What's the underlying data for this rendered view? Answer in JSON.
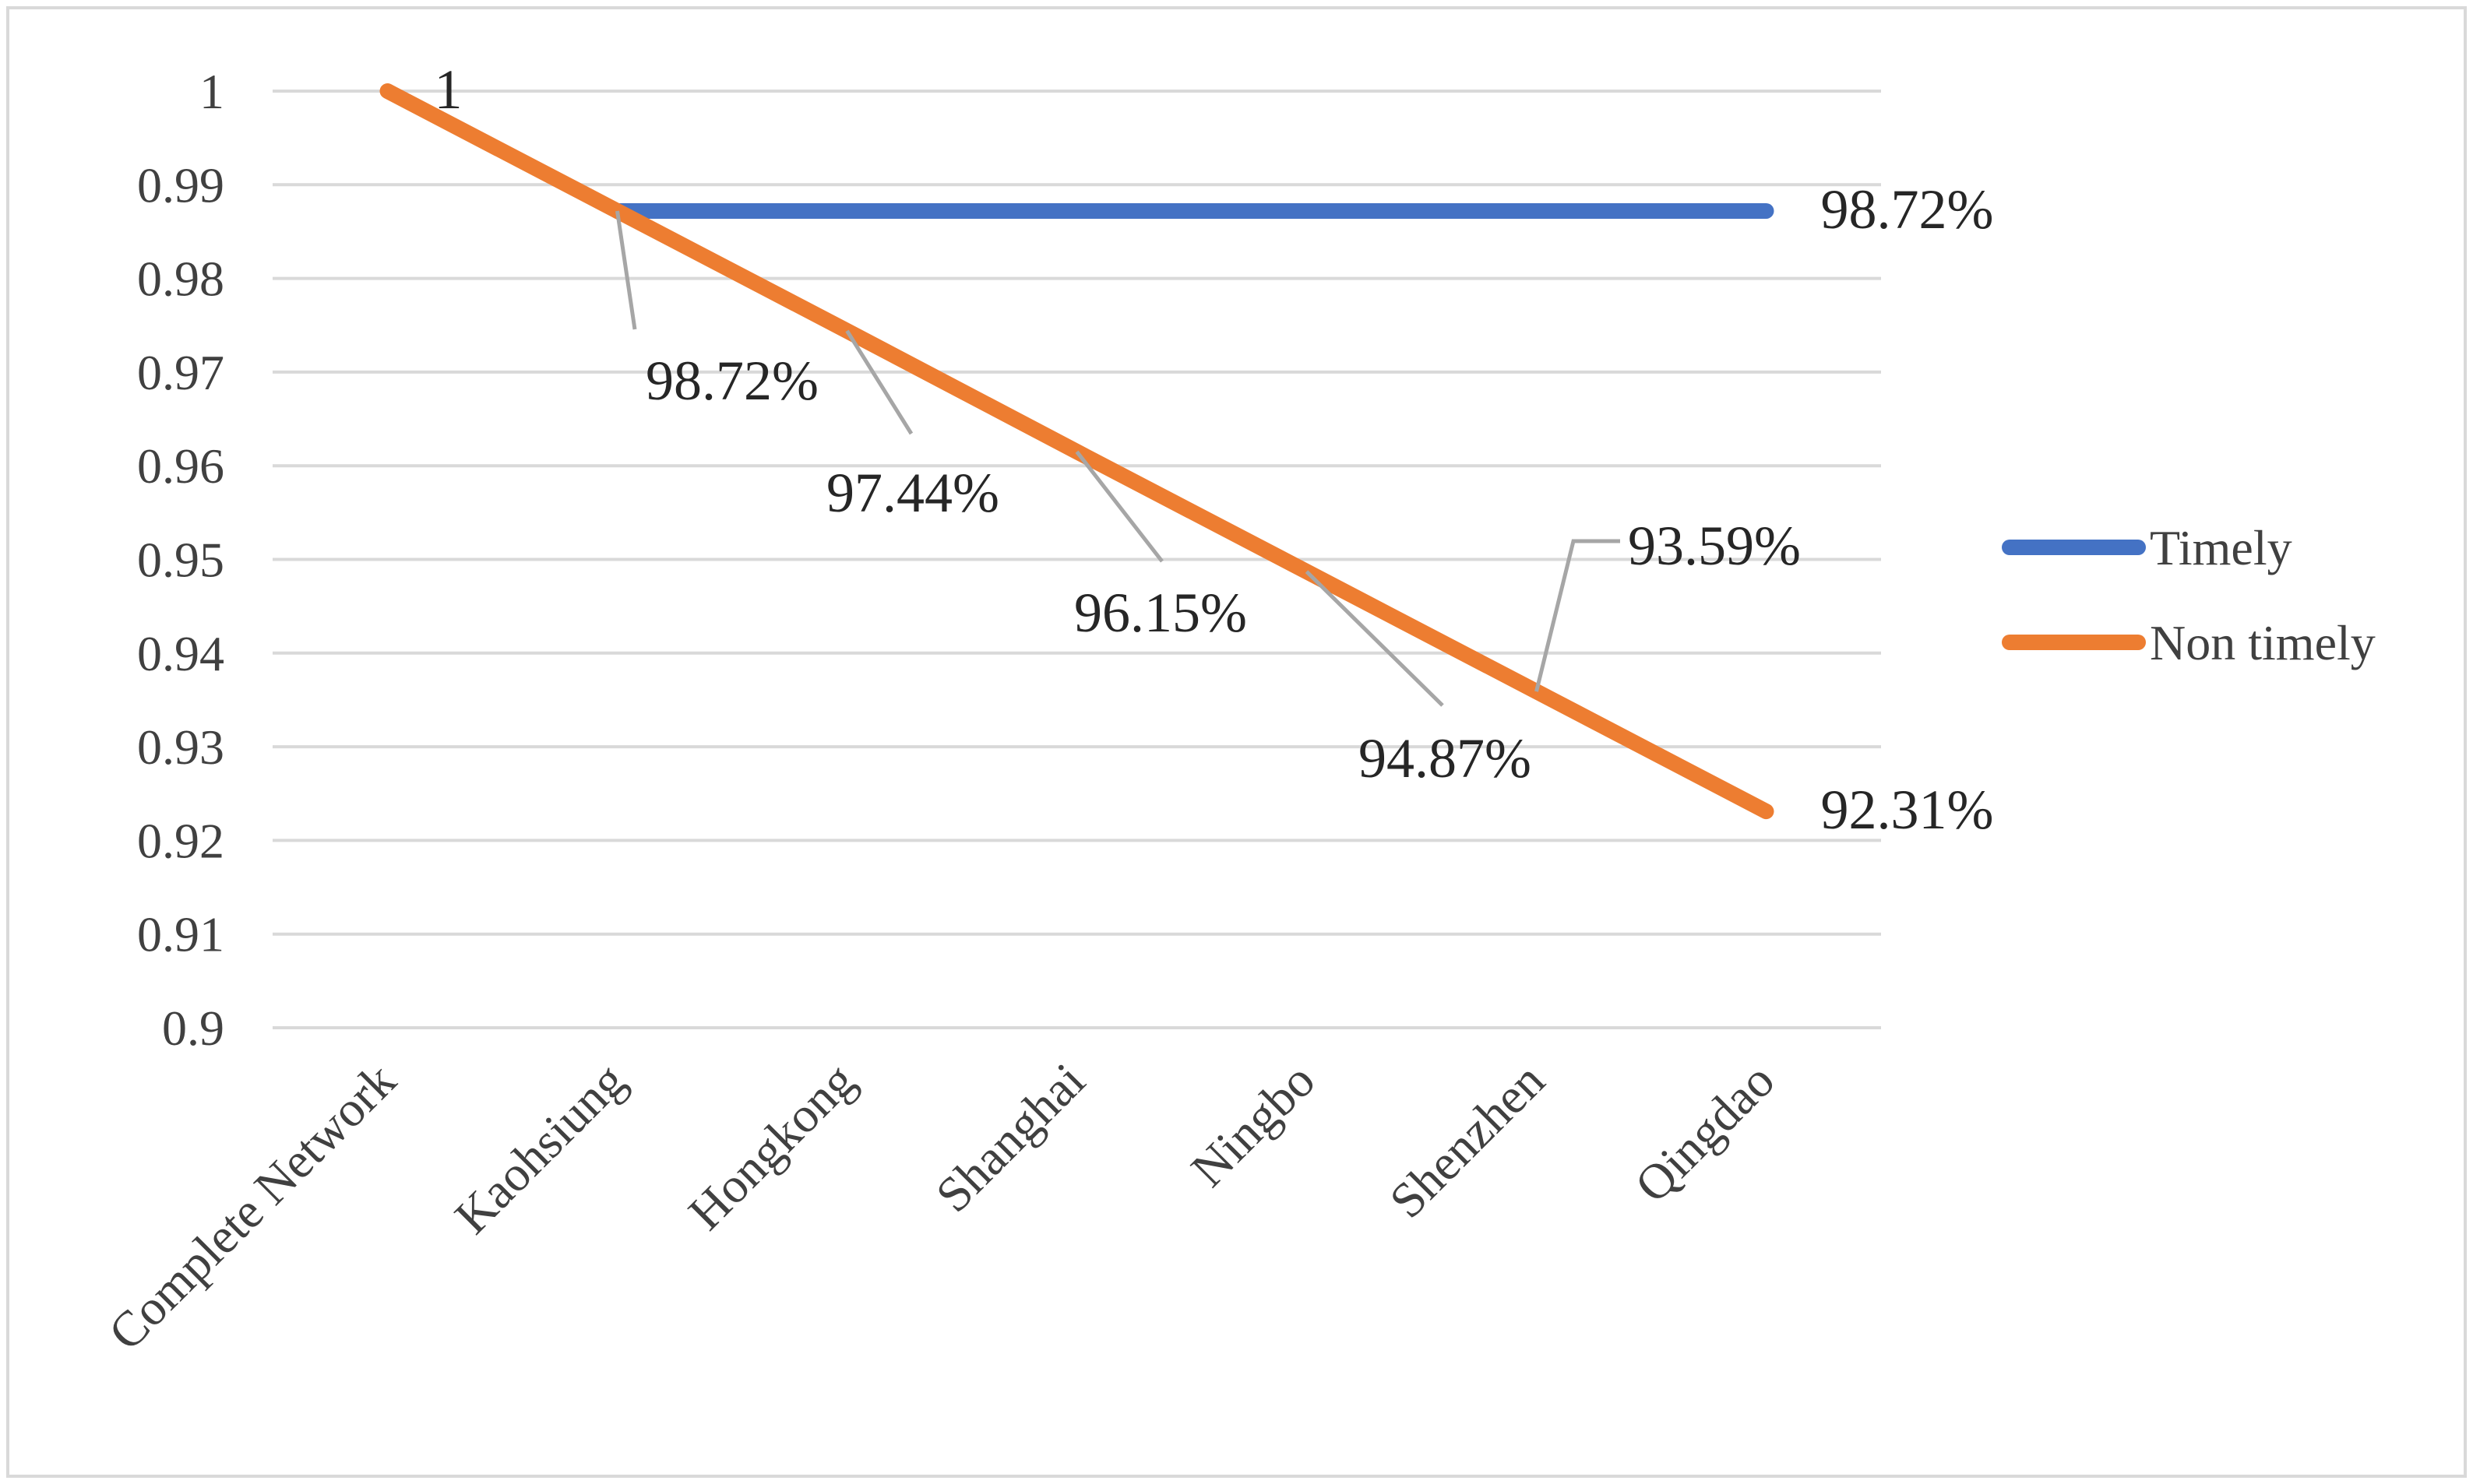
{
  "chart_data": {
    "type": "line",
    "title": "",
    "xlabel": "",
    "ylabel": "",
    "categories": [
      "Complete Network",
      "Kaohsiung",
      "Hongkong",
      "Shanghai",
      "Ningbo",
      "Shenzhen",
      "Qingdao"
    ],
    "ylim": [
      0.9,
      1
    ],
    "y_ticks": [
      "1",
      "0.99",
      "0.98",
      "0.97",
      "0.96",
      "0.95",
      "0.94",
      "0.93",
      "0.92",
      "0.91",
      "0.9"
    ],
    "grid": true,
    "legend": "right",
    "series": [
      {
        "name": "Timely",
        "color": "#4472c4",
        "values": [
          null,
          0.9872,
          0.9872,
          0.9872,
          0.9872,
          0.9872,
          0.9872
        ],
        "labels": [
          null,
          null,
          null,
          null,
          null,
          null,
          "98.72%"
        ]
      },
      {
        "name": "Non timely",
        "color": "#ed7d31",
        "values": [
          1,
          0.9872,
          0.9744,
          0.9615,
          0.9487,
          0.9359,
          0.9231
        ],
        "labels": [
          "1",
          "98.72%",
          "97.44%",
          "96.15%",
          "94.87%",
          "93.59%",
          "92.31%"
        ]
      }
    ]
  }
}
